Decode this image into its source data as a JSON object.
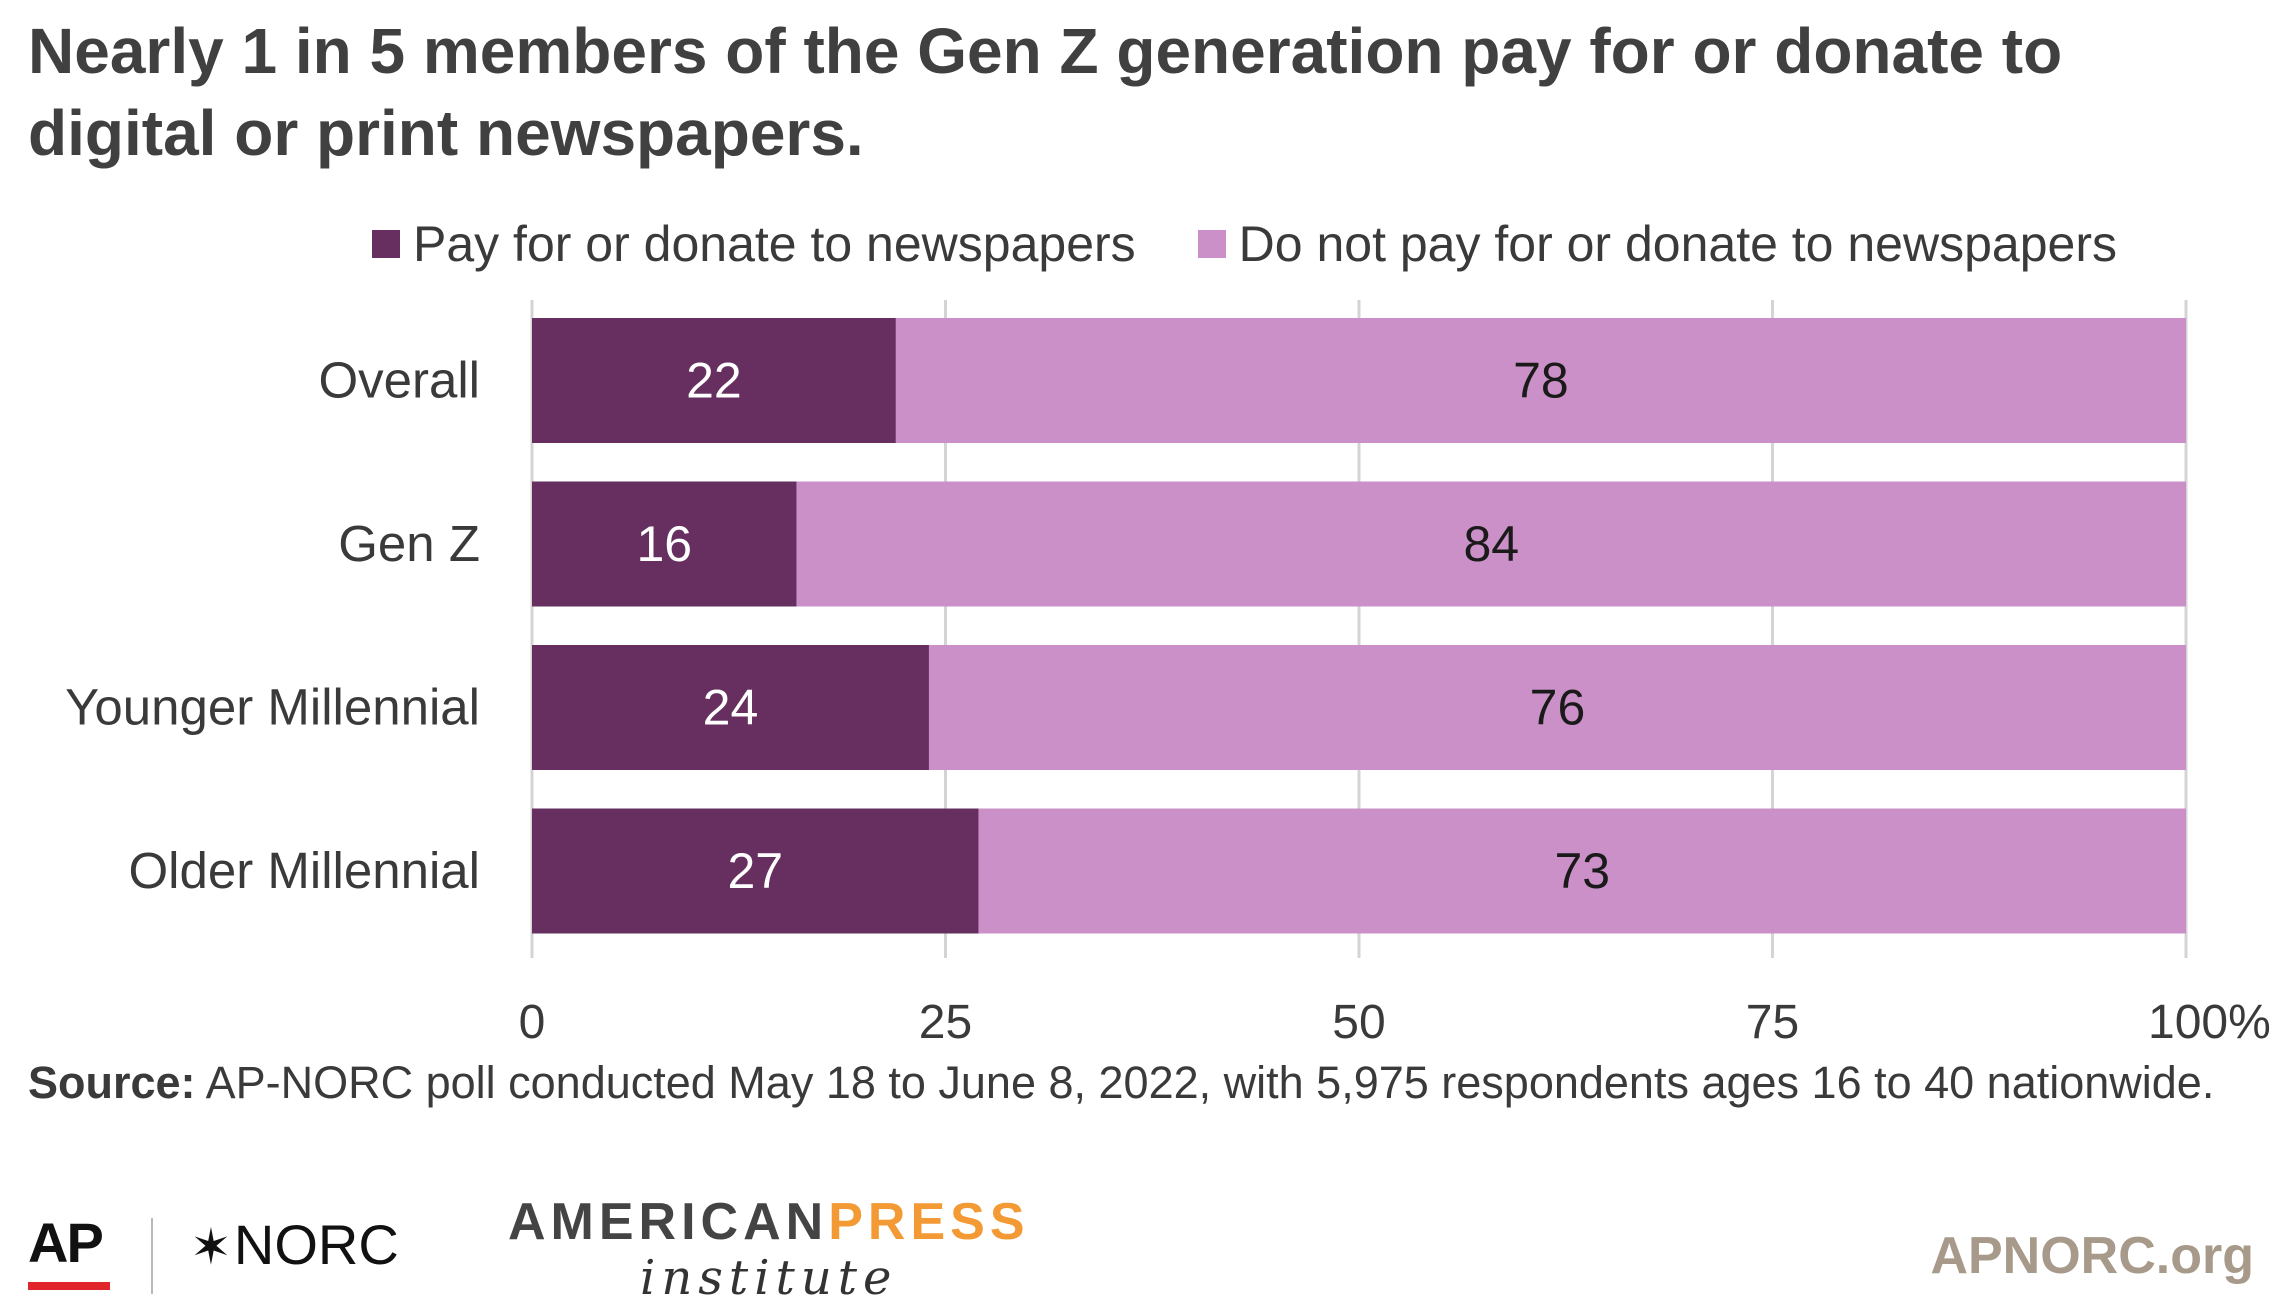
{
  "title": "Nearly 1 in 5 members of the Gen Z generation pay for or donate to digital or print newspapers.",
  "legend": {
    "pay": "Pay for or donate to newspapers",
    "not_pay": "Do not pay for or donate to newspapers"
  },
  "colors": {
    "pay": "#662f60",
    "not_pay": "#cb90c8",
    "grid": "#d4d4d4"
  },
  "source": {
    "label": "Source:",
    "text": "AP-NORC poll conducted May 18 to June 8, 2022, with 5,975 respondents ages 16 to 40 nationwide."
  },
  "logos": {
    "ap": "AP",
    "norc": "NORC",
    "api_main": "AMERICAN",
    "api_press": "PRESS",
    "api_sub": "institute",
    "site": "APNORC.org"
  },
  "chart_data": {
    "type": "bar",
    "orientation": "horizontal",
    "stacked": true,
    "categories": [
      "Overall",
      "Gen Z",
      "Younger Millennial",
      "Older Millennial"
    ],
    "series": [
      {
        "name": "Pay for or donate to newspapers",
        "values": [
          22,
          16,
          24,
          27
        ]
      },
      {
        "name": "Do not pay for or donate to newspapers",
        "values": [
          78,
          84,
          76,
          73
        ]
      }
    ],
    "xlim": [
      0,
      100
    ],
    "xticks": [
      "0",
      "25",
      "50",
      "75",
      "100%"
    ],
    "xtick_values": [
      0,
      25,
      50,
      75,
      100
    ],
    "grid": true,
    "legend_position": "top"
  }
}
